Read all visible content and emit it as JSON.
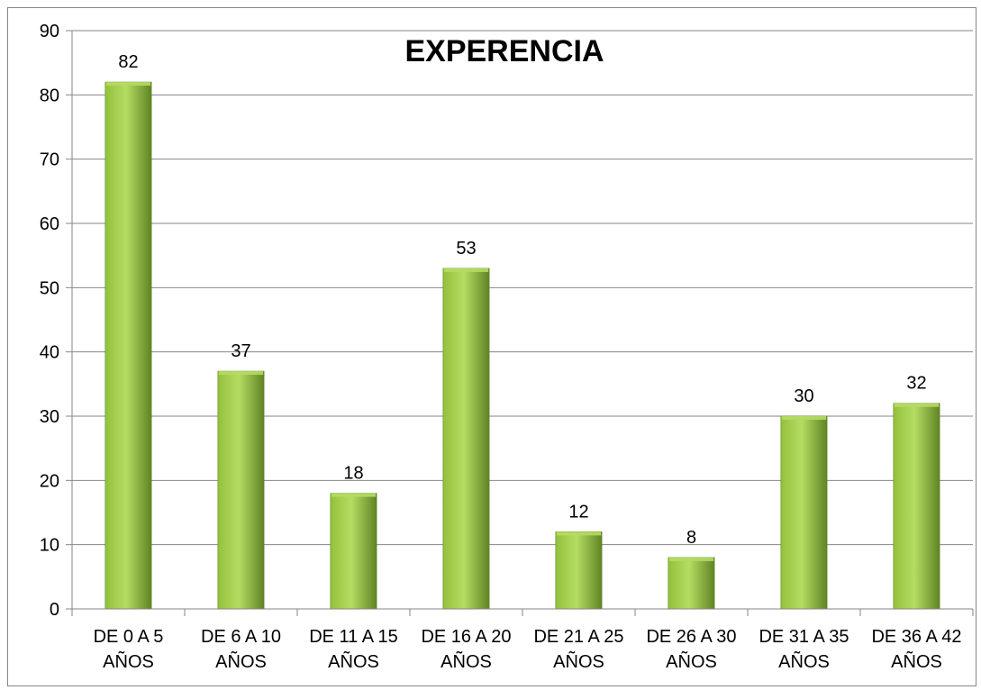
{
  "chart_data": {
    "type": "bar",
    "title": "EXPERENCIA",
    "xlabel": "",
    "ylabel": "",
    "categories": [
      [
        "DE 0 A 5",
        "AÑOS"
      ],
      [
        "DE 6 A 10",
        "AÑOS"
      ],
      [
        "DE 11 A 15",
        "AÑOS"
      ],
      [
        "DE 16 A 20",
        "AÑOS"
      ],
      [
        "DE 21 A 25",
        "AÑOS"
      ],
      [
        "DE 26 A 30",
        "AÑOS"
      ],
      [
        "DE 31 A 35",
        "AÑOS"
      ],
      [
        "DE 36 A 42",
        "AÑOS"
      ]
    ],
    "values": [
      82,
      37,
      18,
      53,
      12,
      8,
      30,
      32
    ],
    "data_labels": [
      "82",
      "37",
      "18",
      "53",
      "12",
      "8",
      "30",
      "32"
    ],
    "ylim": [
      0,
      90
    ],
    "yticks": [
      "0",
      "10",
      "20",
      "30",
      "40",
      "50",
      "60",
      "70",
      "80",
      "90"
    ],
    "grid": true,
    "legend": "none",
    "colors": {
      "bar_light": "#b5dc62",
      "bar_mid": "#93c13c",
      "bar_dark": "#5f8424",
      "gridline": "#868686",
      "axis": "#868686"
    }
  }
}
